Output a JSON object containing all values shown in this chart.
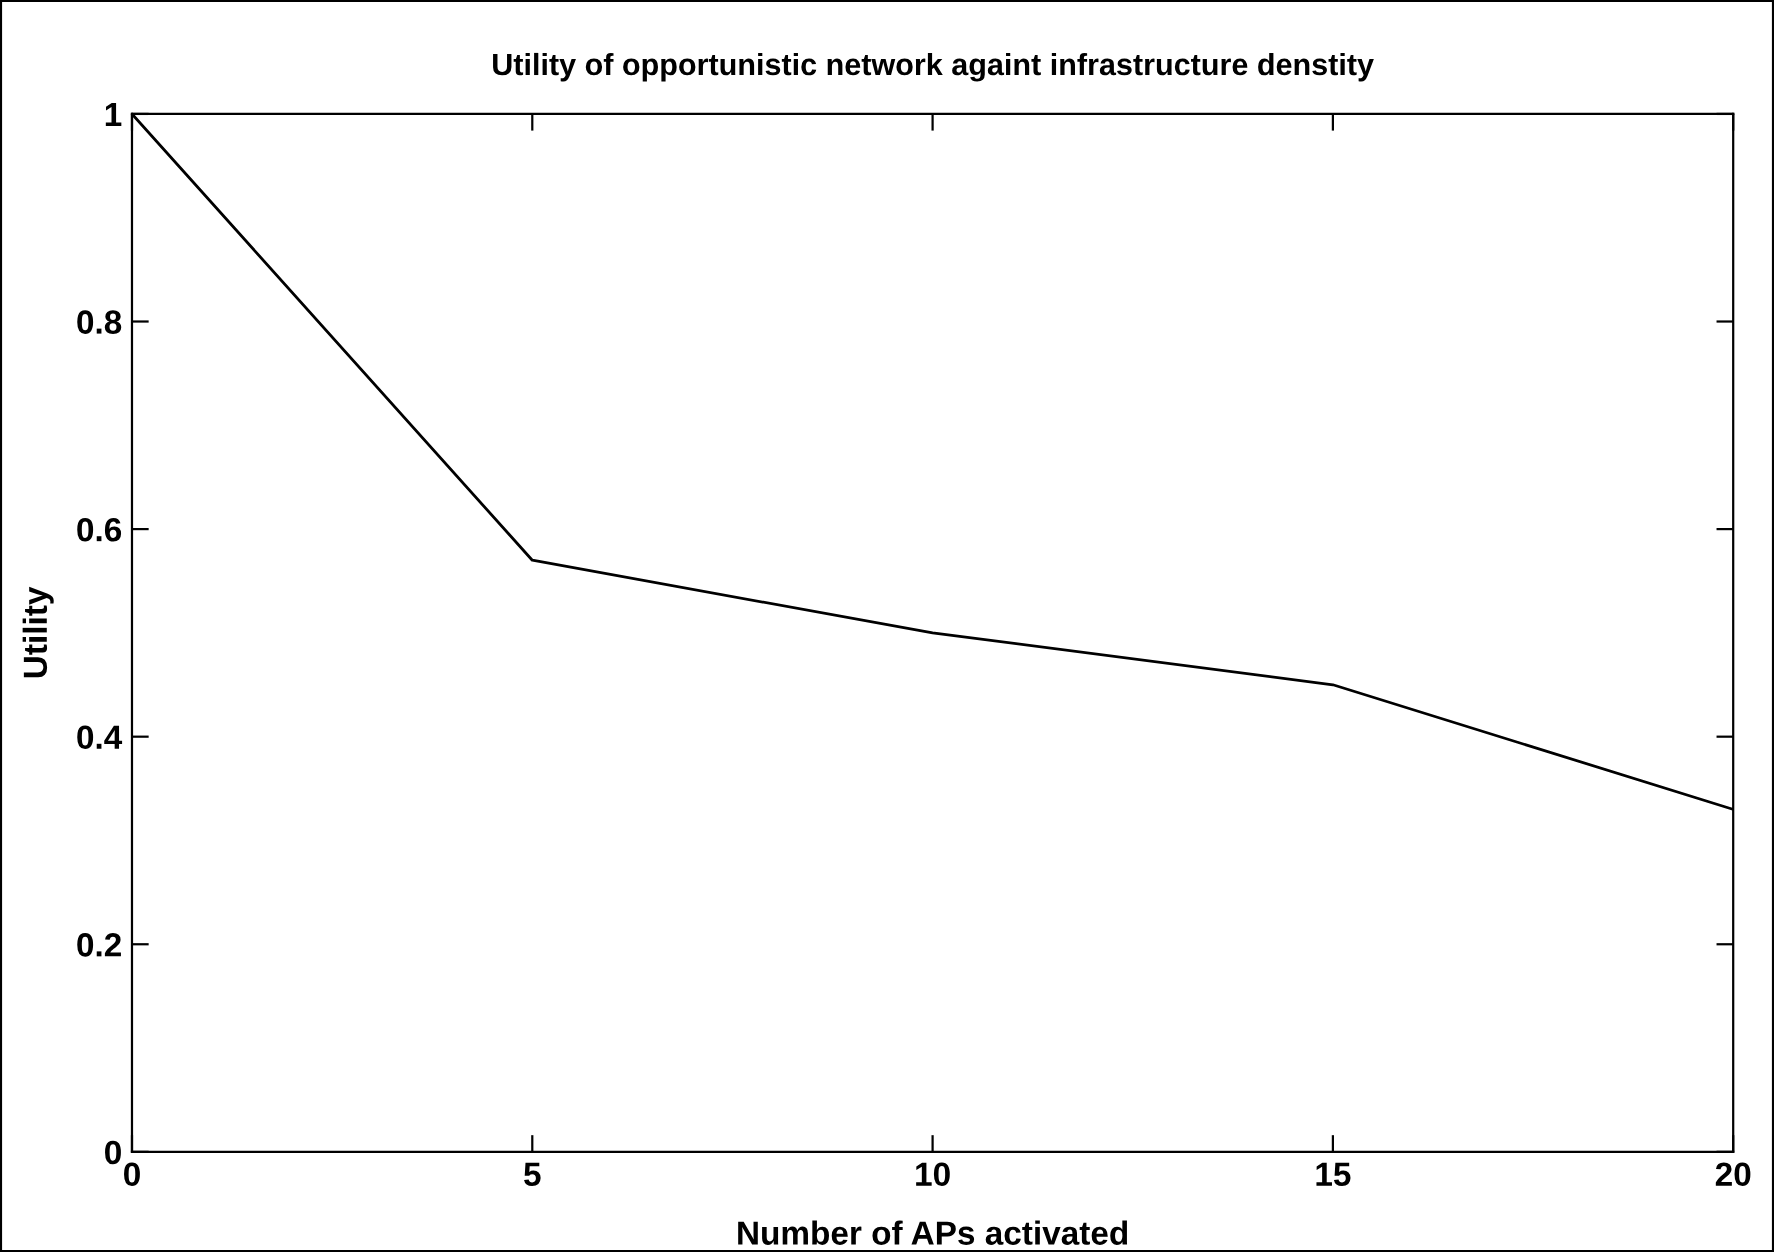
{
  "chart_data": {
    "type": "line",
    "title": "Utility of opportunistic network againt infrastructure denstity",
    "xlabel": "Number of APs activated",
    "ylabel": "Utility",
    "x": [
      0,
      5,
      10,
      15,
      20
    ],
    "series": [
      {
        "color": "#000000",
        "values": [
          1,
          0.57,
          0.5,
          0.45,
          0.33
        ]
      }
    ],
    "xlim": [
      0,
      20
    ],
    "xticks": [
      0,
      5,
      10,
      15,
      20
    ],
    "ylim": [
      0,
      1
    ],
    "yticks": [
      0,
      {
        "value": 0.2,
        "label": "0.2"
      },
      {
        "value": 0.4,
        "label": "0.4"
      },
      {
        "value": 0.6,
        "label": "0.6"
      },
      {
        "value": 0.8,
        "label": "0.8"
      },
      1
    ],
    "grid": false,
    "marker": "none",
    "line_style": "solid"
  }
}
